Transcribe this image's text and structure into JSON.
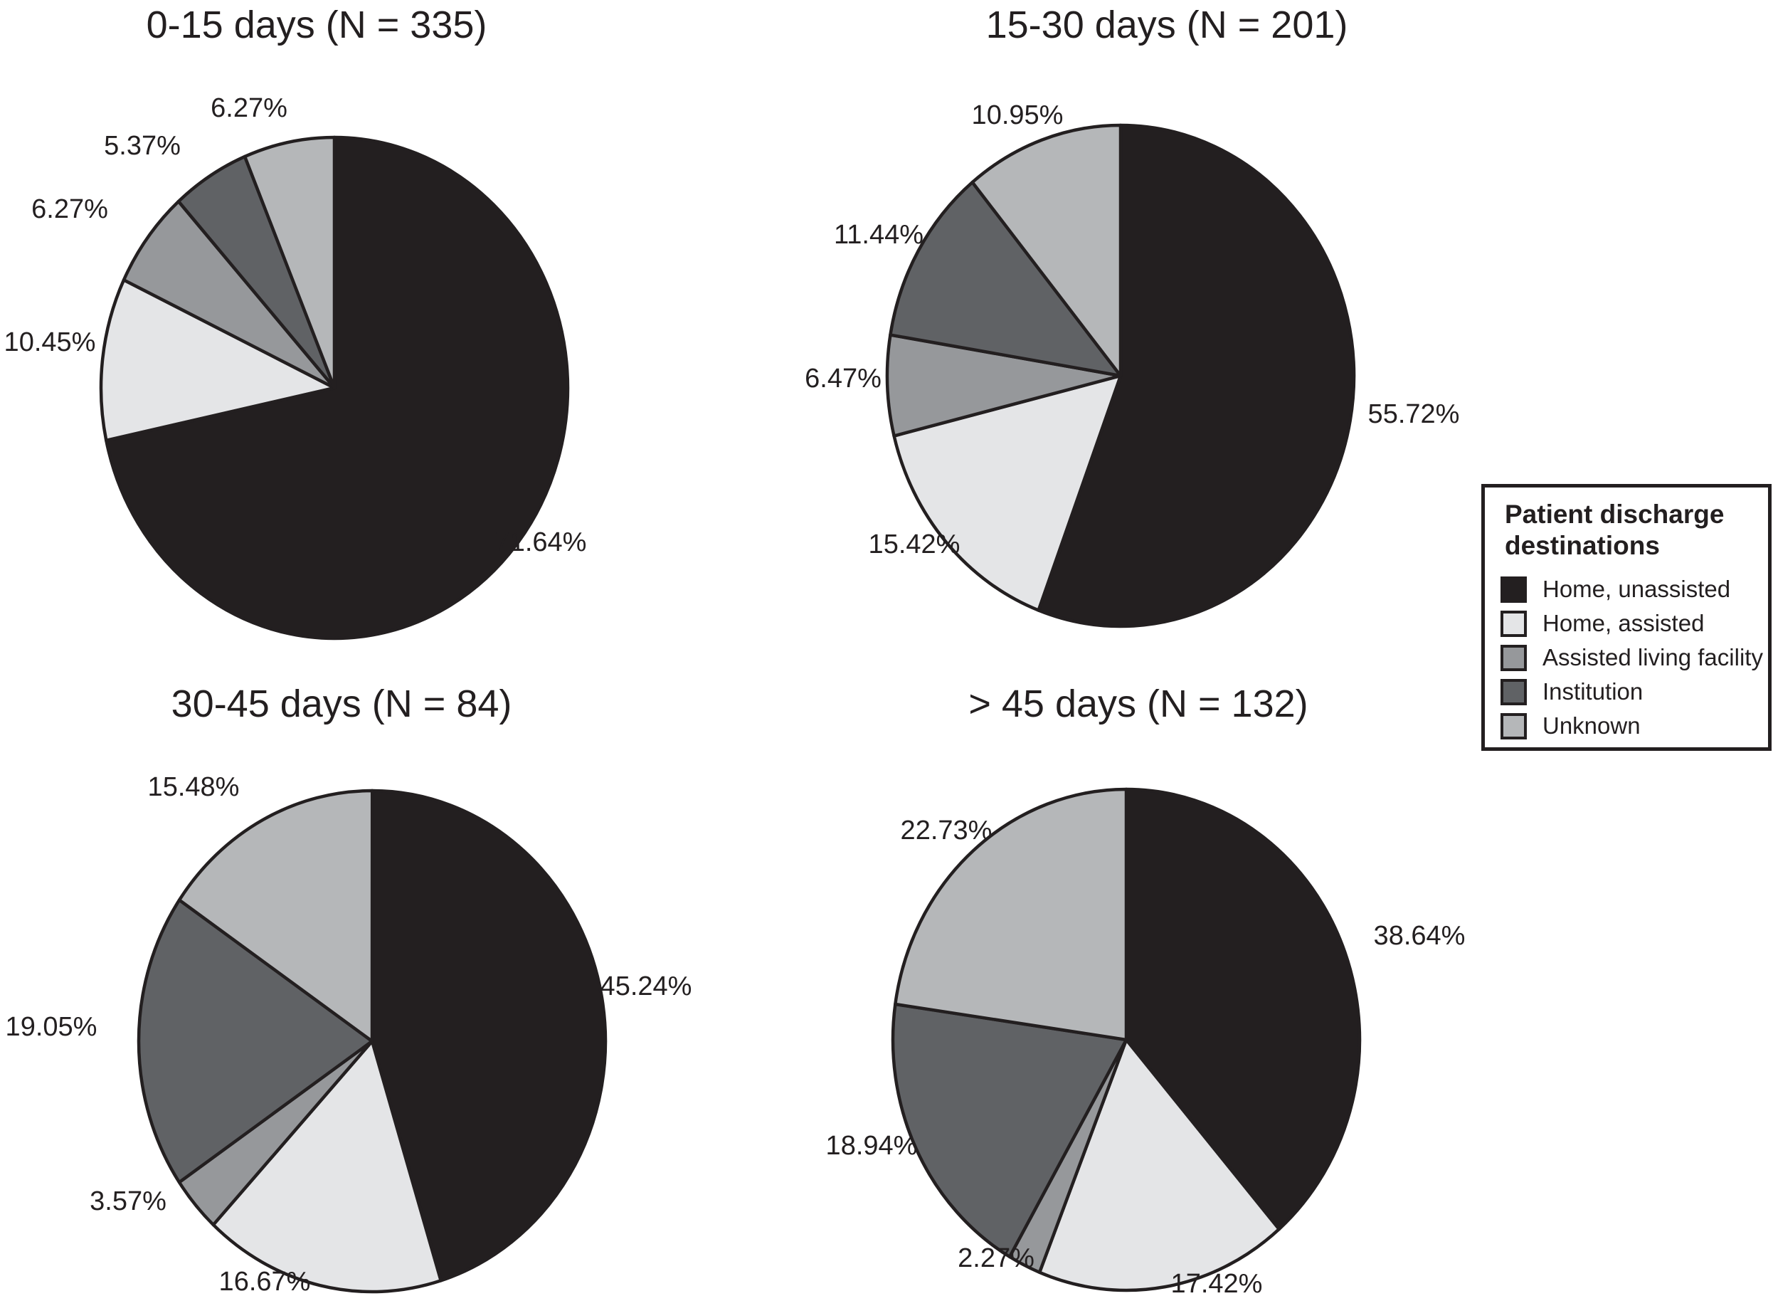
{
  "chart_data": [
    {
      "type": "pie",
      "title": "0-15 days (N = 335)",
      "n": 335,
      "categories": [
        "Home, unassisted",
        "Home, assisted",
        "Assisted living facility",
        "Institution",
        "Unknown"
      ],
      "values": [
        71.64,
        10.45,
        6.27,
        5.37,
        6.27
      ],
      "labels": [
        "71.64%",
        "10.45%",
        "6.27%",
        "5.37%",
        "6.27%"
      ],
      "start": "12 o'clock",
      "direction": "clockwise"
    },
    {
      "type": "pie",
      "title": "15-30 days (N = 201)",
      "n": 201,
      "categories": [
        "Home, unassisted",
        "Home, assisted",
        "Assisted living facility",
        "Institution",
        "Unknown"
      ],
      "values": [
        55.72,
        15.42,
        6.47,
        11.44,
        10.95
      ],
      "labels": [
        "55.72%",
        "15.42%",
        "6.47%",
        "11.44%",
        "10.95%"
      ],
      "start": "12 o'clock",
      "direction": "clockwise"
    },
    {
      "type": "pie",
      "title": "30-45 days (N = 84)",
      "n": 84,
      "categories": [
        "Home, unassisted",
        "Home, assisted",
        "Assisted living facility",
        "Institution",
        "Unknown"
      ],
      "values": [
        45.24,
        16.67,
        3.57,
        19.05,
        15.48
      ],
      "labels": [
        "45.24%",
        "16.67%",
        "3.57%",
        "19.05%",
        "15.48%"
      ],
      "start": "12 o'clock",
      "direction": "clockwise"
    },
    {
      "type": "pie",
      "title": "> 45 days (N = 132)",
      "n": 132,
      "categories": [
        "Home, unassisted",
        "Home, assisted",
        "Assisted living facility",
        "Institution",
        "Unknown"
      ],
      "values": [
        38.64,
        17.42,
        2.27,
        18.94,
        22.73
      ],
      "labels": [
        "38.64%",
        "17.42%",
        "2.27%",
        "18.94%",
        "22.73%"
      ],
      "start": "12 o'clock",
      "direction": "clockwise"
    }
  ],
  "legend": {
    "title": "Patient discharge destinations",
    "position": "right",
    "items": [
      {
        "label": "Home, unassisted",
        "color": "#231f20"
      },
      {
        "label": "Home, assisted",
        "color": "#e4e5e7"
      },
      {
        "label": "Assisted living facility",
        "color": "#96989b"
      },
      {
        "label": "Institution",
        "color": "#606265"
      },
      {
        "label": "Unknown",
        "color": "#b5b7b9"
      }
    ]
  }
}
